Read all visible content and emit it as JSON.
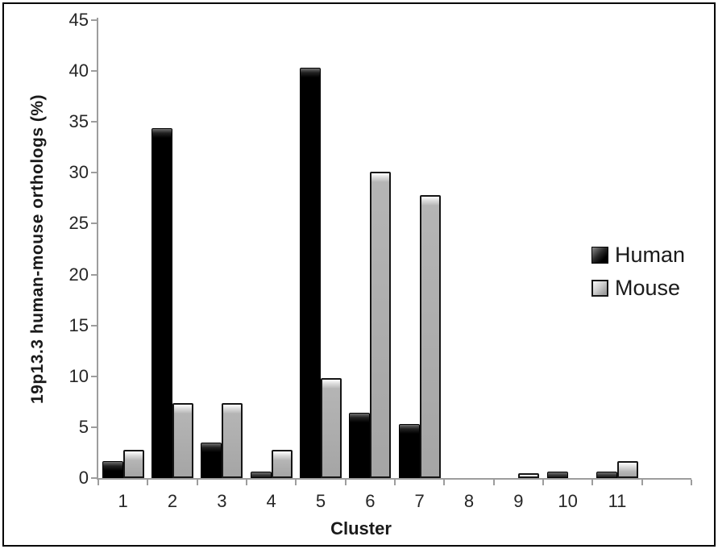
{
  "chart_data": {
    "type": "bar",
    "title": "",
    "xlabel": "Cluster",
    "ylabel": "19p13.3 human-mouse orthologs (%)",
    "categories": [
      "1",
      "2",
      "3",
      "4",
      "5",
      "6",
      "7",
      "8",
      "9",
      "10",
      "11"
    ],
    "series": [
      {
        "name": "Human",
        "color": "#000000",
        "values": [
          1.7,
          34.4,
          3.5,
          0.6,
          40.3,
          6.4,
          5.3,
          0,
          0,
          0.6,
          0.6
        ]
      },
      {
        "name": "Mouse",
        "color": "#a8a8a8",
        "values": [
          2.8,
          7.4,
          7.4,
          2.8,
          9.8,
          30.1,
          27.8,
          0,
          0.5,
          0,
          1.7
        ]
      }
    ],
    "ylim": [
      0,
      45
    ],
    "yticks": [
      0,
      5,
      10,
      15,
      20,
      25,
      30,
      35,
      40,
      45
    ],
    "grid": false,
    "legend_position": "right",
    "axis_color": "#9d9d9d",
    "empty_trailing_slots": 1
  }
}
